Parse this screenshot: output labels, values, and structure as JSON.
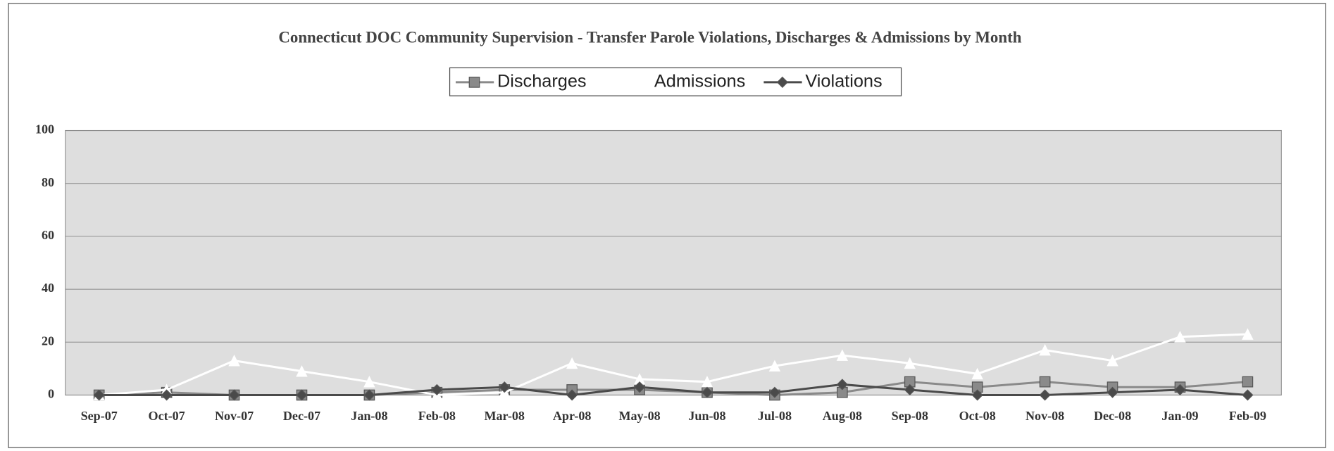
{
  "chart_data": {
    "type": "line",
    "title": "Connecticut DOC Community Supervision - Transfer Parole Violations, Discharges & Admissions by Month",
    "categories": [
      "Sep-07",
      "Oct-07",
      "Nov-07",
      "Dec-07",
      "Jan-08",
      "Feb-08",
      "Mar-08",
      "Apr-08",
      "May-08",
      "Jun-08",
      "Jul-08",
      "Aug-08",
      "Sep-08",
      "Oct-08",
      "Nov-08",
      "Dec-08",
      "Jan-09",
      "Feb-09"
    ],
    "series": [
      {
        "name": "Discharges",
        "color": "#8a8a8a",
        "marker": "square",
        "values": [
          0,
          1,
          0,
          0,
          0,
          1,
          2,
          2,
          2,
          1,
          0,
          1,
          5,
          3,
          5,
          3,
          3,
          5
        ]
      },
      {
        "name": "Admissions",
        "color": "#ffffff",
        "marker": "triangle",
        "values": [
          0,
          2,
          13,
          9,
          5,
          0,
          1,
          12,
          6,
          5,
          11,
          15,
          12,
          8,
          17,
          13,
          22,
          23
        ]
      },
      {
        "name": "Violations",
        "color": "#4a4a4a",
        "marker": "diamond",
        "values": [
          0,
          0,
          0,
          0,
          0,
          2,
          3,
          0,
          3,
          1,
          1,
          4,
          2,
          0,
          0,
          1,
          2,
          0
        ]
      }
    ],
    "ylim": [
      0,
      100
    ],
    "yticks": [
      0,
      20,
      40,
      60,
      80,
      100
    ],
    "grid": true,
    "legend": "top"
  }
}
